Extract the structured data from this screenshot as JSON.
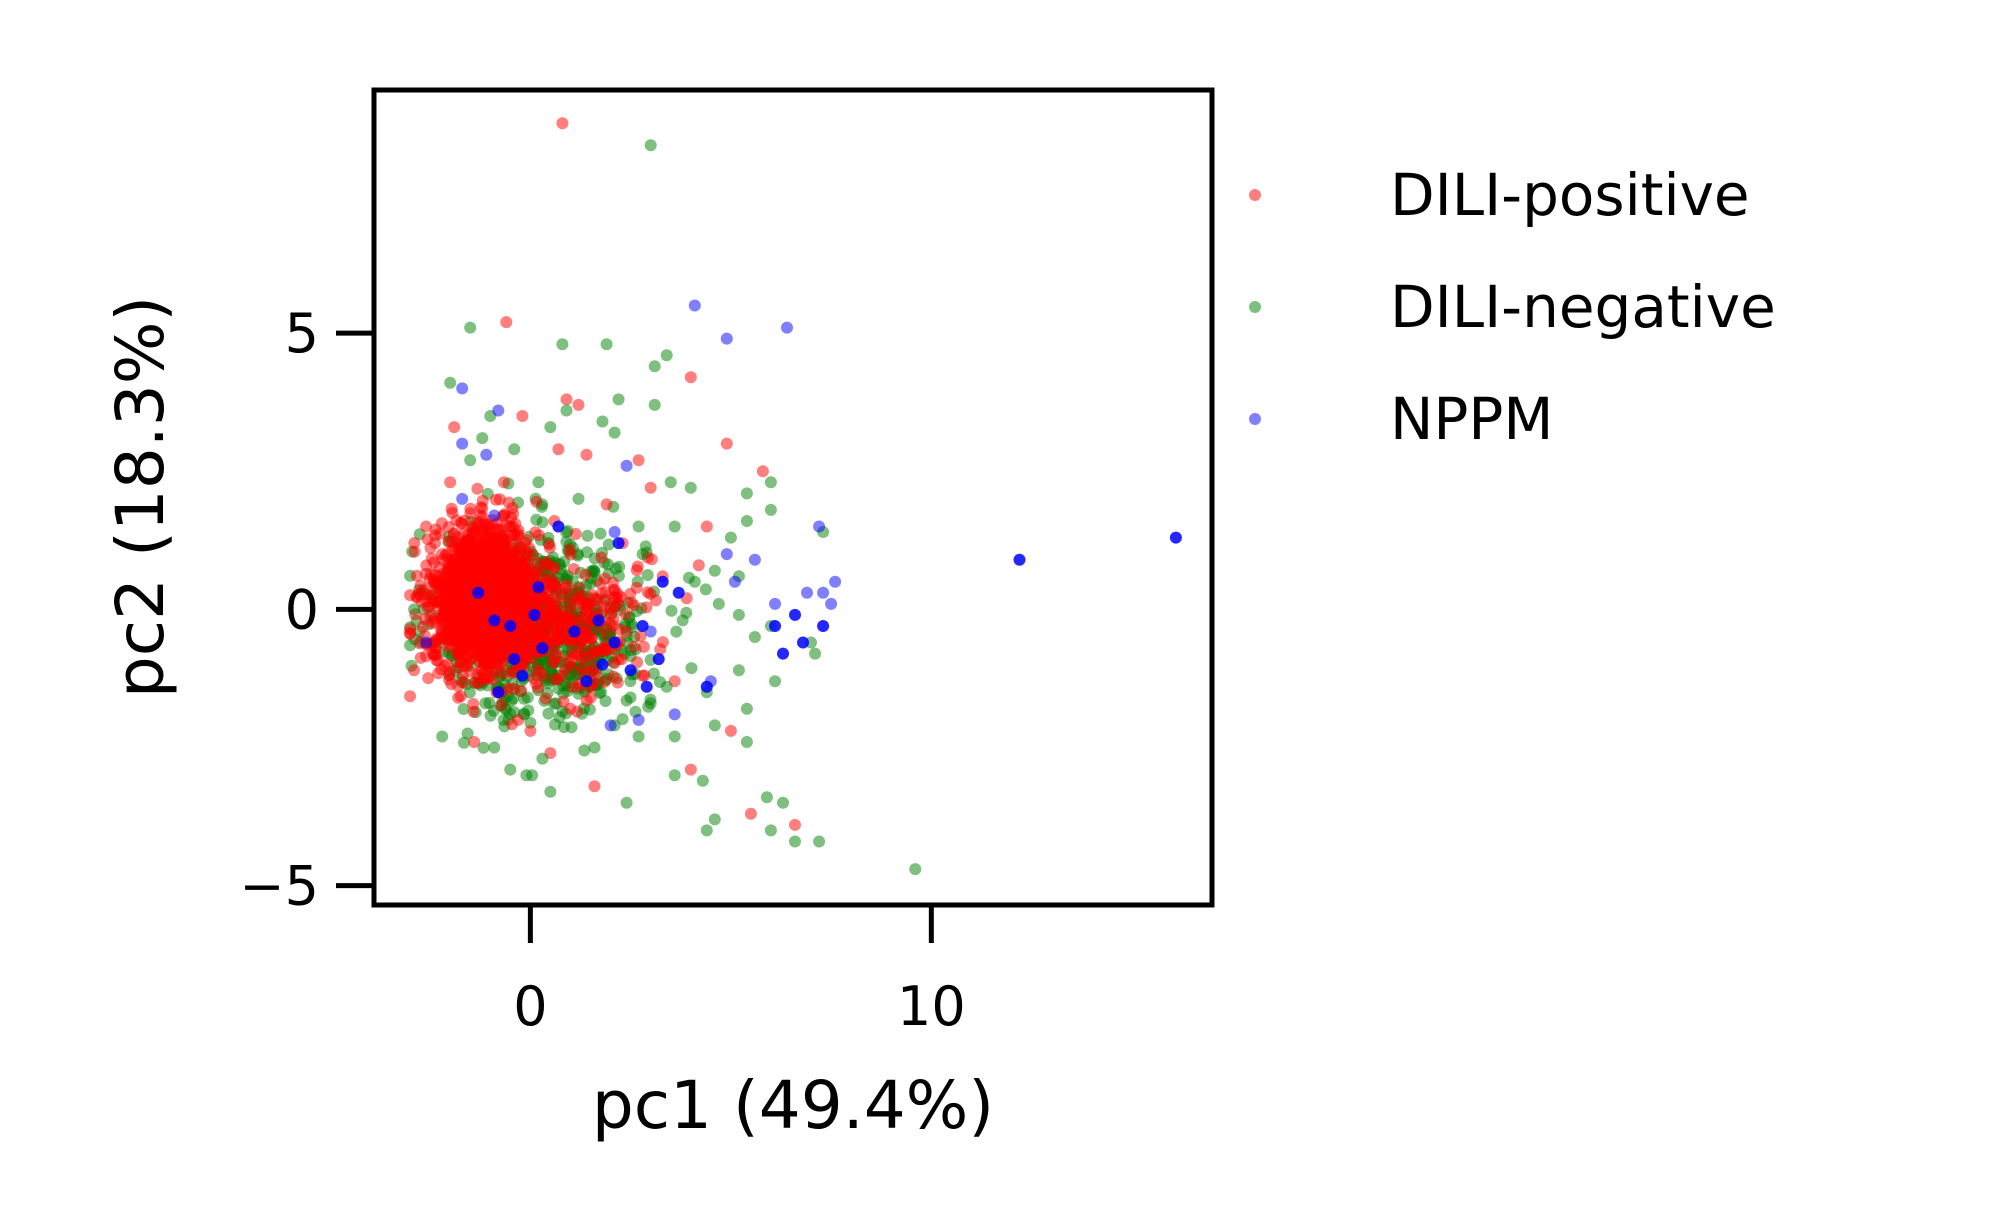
{
  "chart_data": {
    "type": "scatter",
    "title": "",
    "xlabel": "pc1 (49.4%)",
    "ylabel": "pc2 (18.3%)",
    "xlim": [
      -3.9,
      17.0
    ],
    "ylim": [
      -5.35,
      9.4
    ],
    "xticks": [
      0,
      10
    ],
    "yticks": [
      -5,
      0,
      5
    ],
    "x_tick_labels": [
      "0",
      "10"
    ],
    "y_tick_labels": [
      "−5",
      "0",
      "5"
    ],
    "grid": false,
    "legend_placement": "outside-right",
    "series": [
      {
        "name": "DILI-positive",
        "color": "#ff0000",
        "opacity": 0.5,
        "points": [
          [
            0.8,
            8.8
          ],
          [
            -0.6,
            5.2
          ],
          [
            0.9,
            3.8
          ],
          [
            1.2,
            3.7
          ],
          [
            -1.9,
            3.3
          ],
          [
            -0.2,
            3.5
          ],
          [
            4.0,
            4.2
          ],
          [
            4.9,
            3.0
          ],
          [
            5.8,
            2.5
          ],
          [
            0.7,
            2.9
          ],
          [
            1.4,
            2.8
          ],
          [
            2.7,
            2.7
          ],
          [
            3.0,
            2.2
          ],
          [
            1.9,
            1.9
          ],
          [
            4.4,
            1.5
          ],
          [
            4.2,
            0.8
          ],
          [
            3.3,
            0.6
          ],
          [
            2.3,
            1.2
          ],
          [
            1.6,
            0.2
          ],
          [
            2.4,
            -0.4
          ],
          [
            2.8,
            -1.2
          ],
          [
            1.5,
            -1.6
          ],
          [
            3.6,
            -1.3
          ],
          [
            5.0,
            -2.2
          ],
          [
            1.6,
            -3.2
          ],
          [
            4.0,
            -2.9
          ],
          [
            5.5,
            -3.7
          ],
          [
            6.6,
            -3.9
          ],
          [
            0.5,
            -2.6
          ],
          [
            0.0,
            -2.2
          ],
          [
            -1.4,
            -2.4
          ],
          [
            -2.9,
            -1.1
          ],
          [
            -2.6,
            1.5
          ],
          [
            -2.0,
            2.3
          ],
          [
            2.2,
            -0.9
          ],
          [
            1.0,
            -1.8
          ],
          [
            3.9,
            0.2
          ],
          [
            0.6,
            1.6
          ],
          [
            -0.3,
            -2.0
          ],
          [
            -1.8,
            -1.6
          ]
        ]
      },
      {
        "name": "DILI-negative",
        "color": "#008000",
        "opacity": 0.5,
        "points": [
          [
            3.0,
            8.4
          ],
          [
            -1.5,
            5.1
          ],
          [
            0.8,
            4.8
          ],
          [
            1.9,
            4.8
          ],
          [
            3.4,
            4.6
          ],
          [
            3.1,
            4.4
          ],
          [
            -2.0,
            4.1
          ],
          [
            2.2,
            3.8
          ],
          [
            3.1,
            3.7
          ],
          [
            0.9,
            3.6
          ],
          [
            1.8,
            3.4
          ],
          [
            -1.0,
            3.5
          ],
          [
            2.1,
            3.2
          ],
          [
            -0.4,
            2.9
          ],
          [
            3.5,
            2.3
          ],
          [
            4.0,
            2.2
          ],
          [
            5.4,
            2.1
          ],
          [
            6.0,
            2.3
          ],
          [
            6.0,
            1.8
          ],
          [
            5.4,
            1.6
          ],
          [
            7.3,
            1.4
          ],
          [
            5.0,
            1.3
          ],
          [
            2.7,
            1.5
          ],
          [
            3.6,
            1.5
          ],
          [
            4.6,
            0.7
          ],
          [
            5.2,
            0.6
          ],
          [
            4.1,
            0.5
          ],
          [
            4.7,
            0.1
          ],
          [
            5.2,
            -0.1
          ],
          [
            6.0,
            -0.3
          ],
          [
            7.0,
            -0.6
          ],
          [
            7.1,
            -0.8
          ],
          [
            5.6,
            -0.5
          ],
          [
            5.2,
            -1.1
          ],
          [
            6.1,
            -1.3
          ],
          [
            5.4,
            -1.8
          ],
          [
            3.4,
            -1.4
          ],
          [
            4.4,
            -1.5
          ],
          [
            3.0,
            -1.7
          ],
          [
            2.1,
            -2.1
          ],
          [
            2.7,
            -2.3
          ],
          [
            3.6,
            -2.3
          ],
          [
            4.6,
            -2.1
          ],
          [
            5.4,
            -2.4
          ],
          [
            1.6,
            -2.5
          ],
          [
            0.3,
            -2.7
          ],
          [
            -0.1,
            -3.0
          ],
          [
            0.5,
            -3.3
          ],
          [
            2.4,
            -3.5
          ],
          [
            4.3,
            -3.1
          ],
          [
            3.6,
            -3.0
          ],
          [
            5.9,
            -3.4
          ],
          [
            6.3,
            -3.5
          ],
          [
            4.6,
            -3.8
          ],
          [
            4.4,
            -4.0
          ],
          [
            6.0,
            -4.0
          ],
          [
            6.6,
            -4.2
          ],
          [
            7.2,
            -4.2
          ],
          [
            9.6,
            -4.7
          ],
          [
            -2.2,
            -2.3
          ],
          [
            -0.5,
            -2.9
          ],
          [
            -1.5,
            2.7
          ],
          [
            0.2,
            2.3
          ],
          [
            1.2,
            2.0
          ],
          [
            2.8,
            1.0
          ],
          [
            3.8,
            -0.2
          ],
          [
            2.0,
            -0.5
          ],
          [
            1.1,
            -1.2
          ],
          [
            -2.9,
            0.0
          ],
          [
            -0.9,
            -2.5
          ],
          [
            0.5,
            3.3
          ],
          [
            -1.2,
            3.1
          ]
        ]
      },
      {
        "name": "NPPM",
        "color": "#0000ff",
        "opacity": 0.5,
        "points": [
          [
            4.1,
            5.5
          ],
          [
            4.9,
            4.9
          ],
          [
            6.4,
            5.1
          ],
          [
            -1.7,
            4.0
          ],
          [
            -0.8,
            3.6
          ],
          [
            -1.7,
            3.0
          ],
          [
            -1.1,
            2.8
          ],
          [
            2.4,
            2.6
          ],
          [
            7.2,
            1.5
          ],
          [
            4.9,
            1.0
          ],
          [
            5.6,
            0.9
          ],
          [
            7.6,
            0.5
          ],
          [
            7.3,
            0.3
          ],
          [
            6.9,
            0.3
          ],
          [
            6.1,
            0.1
          ],
          [
            7.5,
            0.1
          ],
          [
            5.1,
            0.5
          ],
          [
            2.1,
            1.4
          ],
          [
            -1.7,
            2.0
          ],
          [
            -0.9,
            1.7
          ],
          [
            -2.6,
            -0.6
          ],
          [
            2.0,
            -2.1
          ],
          [
            2.7,
            -2.0
          ],
          [
            3.6,
            -1.9
          ],
          [
            4.5,
            -1.3
          ],
          [
            3.0,
            -0.4
          ]
        ]
      },
      {
        "name": "NPPM",
        "legend": false,
        "color": "#0000ff",
        "opacity": 0.85,
        "points": [
          [
            12.2,
            0.9
          ],
          [
            16.1,
            1.3
          ],
          [
            6.3,
            -0.8
          ],
          [
            6.8,
            -0.6
          ],
          [
            7.3,
            -0.3
          ],
          [
            6.1,
            -0.3
          ],
          [
            6.6,
            -0.1
          ],
          [
            2.2,
            1.2
          ],
          [
            3.3,
            0.5
          ],
          [
            2.8,
            -0.3
          ],
          [
            2.1,
            -0.6
          ],
          [
            1.8,
            -1.0
          ],
          [
            2.5,
            -1.1
          ],
          [
            1.4,
            -1.3
          ],
          [
            3.2,
            -0.9
          ],
          [
            -0.5,
            -0.3
          ],
          [
            0.3,
            -0.7
          ],
          [
            -0.2,
            -1.2
          ],
          [
            -0.9,
            -0.2
          ],
          [
            -1.3,
            0.3
          ],
          [
            0.2,
            0.4
          ],
          [
            0.7,
            1.5
          ],
          [
            -0.4,
            -0.9
          ],
          [
            1.7,
            -0.2
          ],
          [
            -0.8,
            -1.5
          ],
          [
            0.1,
            -0.1
          ],
          [
            3.7,
            0.3
          ],
          [
            1.1,
            -0.4
          ],
          [
            2.9,
            -1.4
          ],
          [
            4.4,
            -1.4
          ]
        ]
      }
    ],
    "dense_clouds": [
      {
        "series": "DILI-negative",
        "center": [
          0.3,
          -0.3
        ],
        "spread": [
          2.3,
          1.55
        ],
        "count": 750
      },
      {
        "series": "DILI-positive",
        "center": [
          -1.1,
          0.2
        ],
        "spread": [
          1.2,
          1.15
        ],
        "count": 1800
      },
      {
        "series": "DILI-positive",
        "center": [
          1.0,
          -0.3
        ],
        "spread": [
          1.6,
          1.1
        ],
        "count": 260
      }
    ]
  }
}
